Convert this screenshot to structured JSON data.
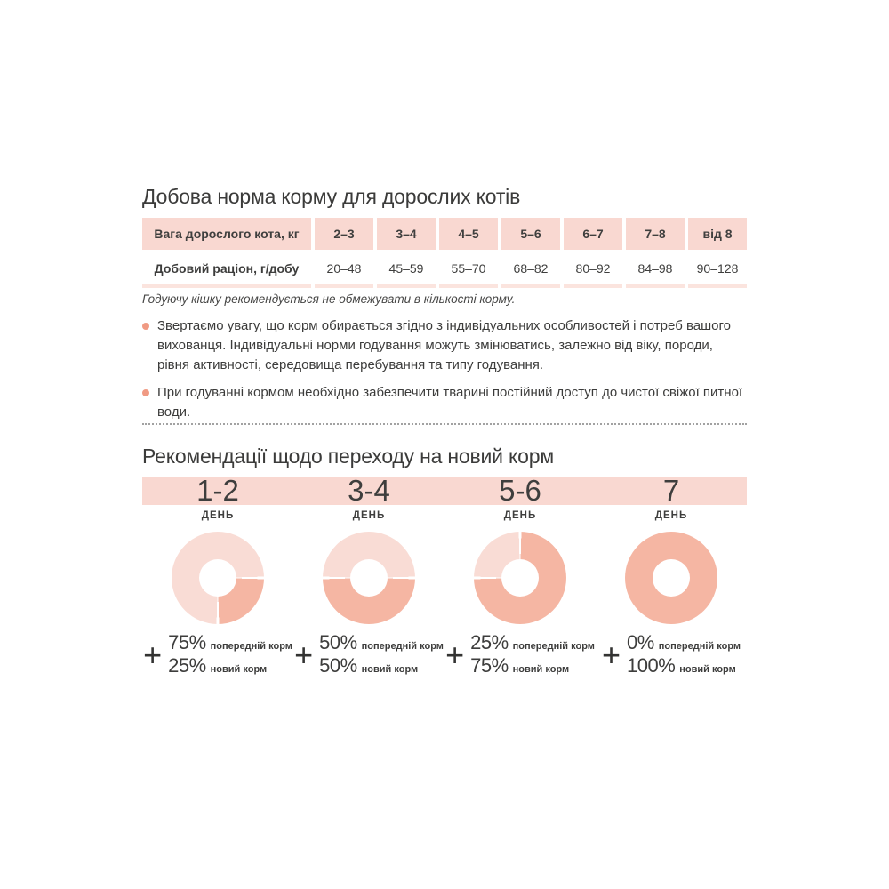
{
  "colors": {
    "band_pink": "#f9d8d1",
    "table_underline": "#fbe4de",
    "donut_old": "#f9dcd5",
    "donut_new": "#f5b6a3",
    "bullet_dot": "#f09a83",
    "text_dark": "#3d3d3c"
  },
  "section1": {
    "title": "Добова норма корму для дорослих котів",
    "table": {
      "header": [
        "Вага дорослого кота, кг",
        "2–3",
        "3–4",
        "4–5",
        "5–6",
        "6–7",
        "7–8",
        "від 8"
      ],
      "row": [
        "Добовий раціон, г/добу",
        "20–48",
        "45–59",
        "55–70",
        "68–82",
        "80–92",
        "84–98",
        "90–128"
      ]
    },
    "note_italic": "Годуючу кішку рекомендується не обмежувати в кількості корму.",
    "bullets": [
      "Звертаємо увагу, що корм обирається згідно з індивідуальних особливостей і потреб вашого вихованця. Індивідуальні норми годування можуть змінюватись, залежно від віку, породи, рівня активності, середовища перебування та типу годування.",
      "При годуванні кормом необхідно забезпечити тварині постійний доступ до чистої свіжої питної води."
    ]
  },
  "section2": {
    "title": "Рекомендації щодо переходу на новий корм",
    "plus_sign": "+"
  },
  "chart_data": [
    {
      "type": "pie",
      "donut": true,
      "day_label": "1-2",
      "day_unit": "ДЕНЬ",
      "categories": [
        "попередній корм",
        "новий корм"
      ],
      "values": [
        75,
        25
      ],
      "colors": [
        "#f9dcd5",
        "#f5b6a3"
      ],
      "new_start_deg": 90,
      "legend_old_pct": "75%",
      "legend_old_label": "попередній корм",
      "legend_new_pct": "25%",
      "legend_new_label": "новий корм"
    },
    {
      "type": "pie",
      "donut": true,
      "day_label": "3-4",
      "day_unit": "ДЕНЬ",
      "categories": [
        "попередній корм",
        "новий корм"
      ],
      "values": [
        50,
        50
      ],
      "colors": [
        "#f9dcd5",
        "#f5b6a3"
      ],
      "new_start_deg": 90,
      "legend_old_pct": "50%",
      "legend_old_label": "попередній корм",
      "legend_new_pct": "50%",
      "legend_new_label": "новий корм"
    },
    {
      "type": "pie",
      "donut": true,
      "day_label": "5-6",
      "day_unit": "ДЕНЬ",
      "categories": [
        "попередній корм",
        "новий корм"
      ],
      "values": [
        25,
        75
      ],
      "colors": [
        "#f9dcd5",
        "#f5b6a3"
      ],
      "new_start_deg": 0,
      "legend_old_pct": "25%",
      "legend_old_label": "попередній корм",
      "legend_new_pct": "75%",
      "legend_new_label": "новий корм"
    },
    {
      "type": "pie",
      "donut": true,
      "day_label": "7",
      "day_unit": "ДЕНЬ",
      "categories": [
        "попередній корм",
        "новий корм"
      ],
      "values": [
        0,
        100
      ],
      "colors": [
        "#f9dcd5",
        "#f5b6a3"
      ],
      "new_start_deg": 90,
      "legend_old_pct": "0%",
      "legend_old_label": "попередній корм",
      "legend_new_pct": "100%",
      "legend_new_label": "новий корм"
    }
  ]
}
